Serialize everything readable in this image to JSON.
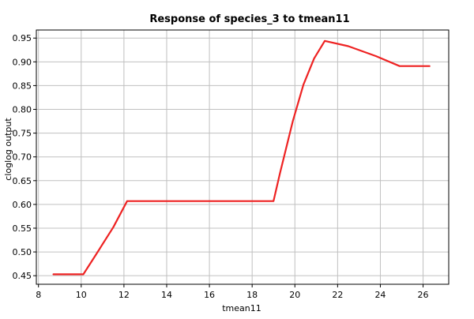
{
  "chart_data": {
    "type": "line",
    "title": "Response of species_3 to tmean11",
    "xlabel": "tmean11",
    "ylabel": "cloglog output",
    "xlim": [
      7.9,
      27.2
    ],
    "ylim": [
      0.432,
      0.967
    ],
    "xticks": [
      8,
      10,
      12,
      14,
      16,
      18,
      20,
      22,
      24,
      26
    ],
    "yticks": [
      0.45,
      0.5,
      0.55,
      0.6,
      0.65,
      0.7,
      0.75,
      0.8,
      0.85,
      0.9,
      0.95
    ],
    "xtick_labels": [
      "8",
      "10",
      "12",
      "14",
      "16",
      "18",
      "20",
      "22",
      "24",
      "26"
    ],
    "ytick_labels": [
      "0.45",
      "0.50",
      "0.55",
      "0.60",
      "0.65",
      "0.70",
      "0.75",
      "0.80",
      "0.85",
      "0.90",
      "0.95"
    ],
    "grid": true,
    "series": [
      {
        "color": "#ee2222",
        "points": [
          [
            8.7,
            0.453
          ],
          [
            10.1,
            0.453
          ],
          [
            10.7,
            0.495
          ],
          [
            11.5,
            0.552
          ],
          [
            12.15,
            0.607
          ],
          [
            19.0,
            0.607
          ],
          [
            19.3,
            0.665
          ],
          [
            19.9,
            0.775
          ],
          [
            20.4,
            0.852
          ],
          [
            20.9,
            0.907
          ],
          [
            21.4,
            0.944
          ],
          [
            22.5,
            0.933
          ],
          [
            23.8,
            0.912
          ],
          [
            24.9,
            0.891
          ],
          [
            26.3,
            0.891
          ]
        ]
      }
    ]
  }
}
